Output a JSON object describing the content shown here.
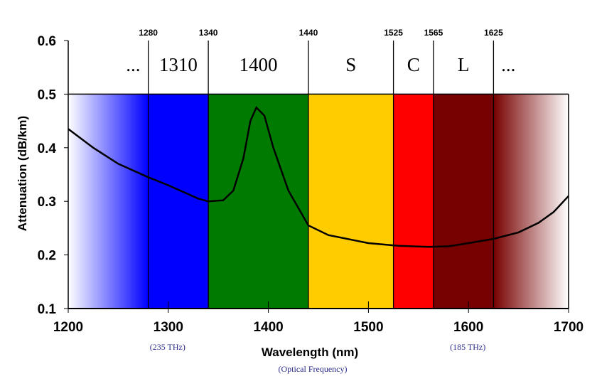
{
  "chart_data": {
    "type": "line",
    "title": "",
    "xlabel": "Wavelength (nm)",
    "xlabel_sub": "(Optical Frequency)",
    "ylabel": "Attenuation (dB/km)",
    "xlim": [
      1200,
      1700
    ],
    "ylim": [
      0.1,
      0.6
    ],
    "xticks": [
      1200,
      1300,
      1400,
      1500,
      1600,
      1700
    ],
    "yticks": [
      0.1,
      0.2,
      0.3,
      0.4,
      0.5,
      0.6
    ],
    "grid": false,
    "frequency_annotations": [
      {
        "x": 1300,
        "text": "(235 THz)"
      },
      {
        "x": 1600,
        "text": "(185 THz)"
      }
    ],
    "band_boundaries": [
      1280,
      1340,
      1440,
      1525,
      1565,
      1625
    ],
    "bands": [
      {
        "label": "...",
        "from": 1200,
        "to": 1280,
        "color": "#0000ff",
        "fade": "left"
      },
      {
        "label": "1310",
        "from": 1280,
        "to": 1340,
        "color": "#0000ff"
      },
      {
        "label": "1400",
        "from": 1340,
        "to": 1440,
        "color": "#007a00"
      },
      {
        "label": "S",
        "from": 1440,
        "to": 1525,
        "color": "#ffcc00"
      },
      {
        "label": "C",
        "from": 1525,
        "to": 1565,
        "color": "#ff0000"
      },
      {
        "label": "L",
        "from": 1565,
        "to": 1625,
        "color": "#770000"
      },
      {
        "label": "...",
        "from": 1625,
        "to": 1700,
        "color": "#770000",
        "fade": "right"
      }
    ],
    "series": [
      {
        "color": "#000000",
        "x": [
          1200,
          1225,
          1250,
          1280,
          1300,
          1330,
          1340,
          1355,
          1365,
          1375,
          1382,
          1388,
          1396,
          1405,
          1420,
          1440,
          1460,
          1500,
          1530,
          1560,
          1580,
          1600,
          1625,
          1650,
          1670,
          1685,
          1700
        ],
        "y": [
          0.435,
          0.4,
          0.37,
          0.345,
          0.33,
          0.305,
          0.3,
          0.302,
          0.32,
          0.38,
          0.45,
          0.475,
          0.46,
          0.4,
          0.32,
          0.255,
          0.237,
          0.222,
          0.217,
          0.215,
          0.216,
          0.222,
          0.23,
          0.242,
          0.26,
          0.28,
          0.31
        ]
      }
    ]
  }
}
